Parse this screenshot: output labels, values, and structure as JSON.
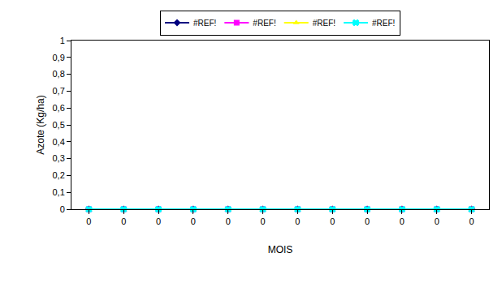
{
  "chart_data": {
    "type": "line",
    "x_label": "MOIS",
    "y_label": "Azote (Kg/ha)",
    "categories": [
      "0",
      "0",
      "0",
      "0",
      "0",
      "0",
      "0",
      "0",
      "0",
      "0",
      "0",
      "0"
    ],
    "series": [
      {
        "name": "#REF!",
        "color": "#000080",
        "marker": "diamond",
        "line_style": "solid",
        "values": [
          0,
          0,
          0,
          0,
          0,
          0,
          0,
          0,
          0,
          0,
          0,
          0
        ]
      },
      {
        "name": "#REF!",
        "color": "#ff00ff",
        "marker": "square",
        "line_style": "solid",
        "values": [
          0,
          0,
          0,
          0,
          0,
          0,
          0,
          0,
          0,
          0,
          0,
          0
        ]
      },
      {
        "name": "#REF!",
        "color": "#ffff00",
        "marker": "triangle",
        "line_style": "solid",
        "values": [
          0,
          0,
          0,
          0,
          0,
          0,
          0,
          0,
          0,
          0,
          0,
          0
        ]
      },
      {
        "name": "#REF!",
        "color": "#00ffff",
        "marker": "x",
        "line_style": "solid",
        "values": [
          0,
          0,
          0,
          0,
          0,
          0,
          0,
          0,
          0,
          0,
          0,
          0
        ]
      }
    ],
    "ylim": [
      0,
      1
    ],
    "yticks": [
      0,
      {
        "value": 0.1,
        "label": "0,1"
      },
      {
        "value": 0.2,
        "label": "0,2"
      },
      {
        "value": 0.3,
        "label": "0,3"
      },
      {
        "value": 0.4,
        "label": "0,4"
      },
      {
        "value": 0.5,
        "label": "0,5"
      },
      {
        "value": 0.6,
        "label": "0,6"
      },
      {
        "value": 0.7,
        "label": "0,7"
      },
      {
        "value": 0.8,
        "label": "0,8"
      },
      {
        "value": 0.9,
        "label": "0,9"
      },
      1
    ],
    "grid": false,
    "legend": "top"
  }
}
